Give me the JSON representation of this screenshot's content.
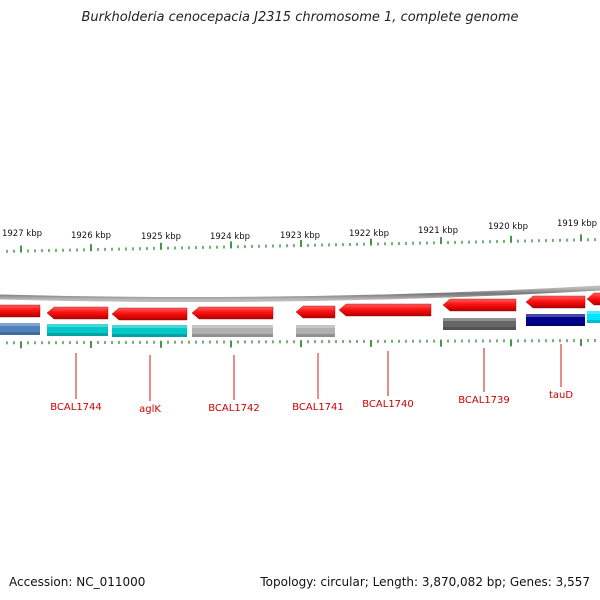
{
  "title": "Burkholderia cenocepacia J2315 chromosome 1, complete genome",
  "footer": {
    "accession": "Accession: NC_011000",
    "summary": "Topology: circular; Length: 3,870,082 bp; Genes: 3,557"
  },
  "axis_labels": [
    "1927 kbp",
    "1926 kbp",
    "1925 kbp",
    "1924 kbp",
    "1923 kbp",
    "1922 kbp",
    "1921 kbp",
    "1920 kbp",
    "1919 kbp"
  ],
  "genes": [
    {
      "label": "BCAL1744",
      "color": "#00c8c8"
    },
    {
      "label": "aglK",
      "color": "#00c8c8"
    },
    {
      "label": "BCAL1742",
      "color": "#b0b0b0"
    },
    {
      "label": "BCAL1741",
      "color": "#b0b0b0"
    },
    {
      "label": "BCAL1740",
      "color": ""
    },
    {
      "label": "BCAL1739",
      "color": "#666666"
    },
    {
      "label": "tauD",
      "color": "#00008b"
    }
  ],
  "colors": {
    "cds": "#ff1010",
    "tick": "#1a7a1a",
    "label": "#cc0000",
    "backbone": "#888888",
    "edge_blue": "#4f81bd",
    "edge_cyan": "#00e5ff"
  }
}
